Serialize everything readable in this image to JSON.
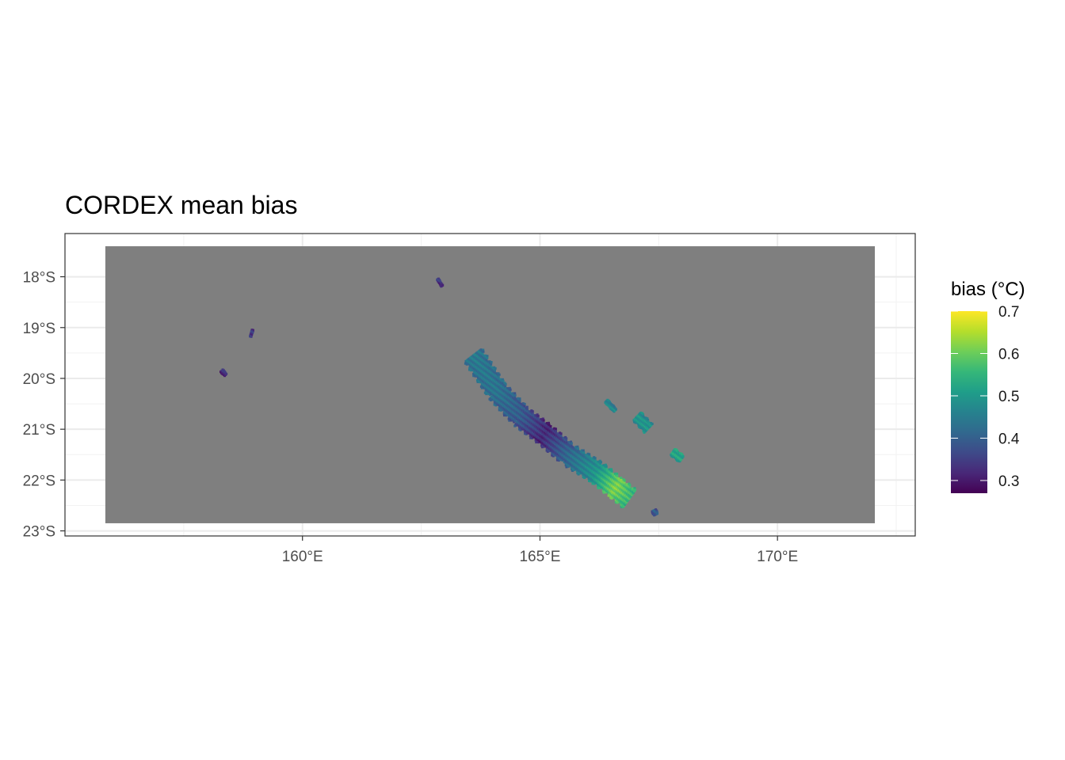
{
  "chart_data": {
    "type": "heatmap",
    "title": "CORDEX mean bias",
    "x_axis": {
      "range": [
        155.0,
        172.9
      ],
      "ticks": [
        {
          "value": 160,
          "label": "160°E"
        },
        {
          "value": 165,
          "label": "165°E"
        },
        {
          "value": 170,
          "label": "170°E"
        }
      ]
    },
    "y_axis": {
      "range": [
        -23.1,
        -17.15
      ],
      "ticks": [
        {
          "value": -18,
          "label": "18°S"
        },
        {
          "value": -19,
          "label": "19°S"
        },
        {
          "value": -20,
          "label": "20°S"
        },
        {
          "value": -21,
          "label": "21°S"
        },
        {
          "value": -22,
          "label": "22°S"
        },
        {
          "value": -23,
          "label": "23°S"
        }
      ]
    },
    "grid": true,
    "missing_value_color": "#7f7f7f",
    "data_extent": {
      "lon": [
        155.85,
        172.05
      ],
      "lat": [
        -22.85,
        -17.4
      ]
    },
    "legend": {
      "title": "bias (°C)",
      "placement": "right",
      "range": [
        0.27,
        0.7
      ],
      "breaks": [
        {
          "value": 0.3,
          "label": "0.3"
        },
        {
          "value": 0.4,
          "label": "0.4"
        },
        {
          "value": 0.5,
          "label": "0.5"
        },
        {
          "value": 0.6,
          "label": "0.6"
        },
        {
          "value": 0.7,
          "label": "0.7"
        }
      ],
      "palette": [
        "#440154",
        "#482878",
        "#3e4a89",
        "#31688e",
        "#26828e",
        "#1f9e89",
        "#35b779",
        "#6ece58",
        "#b5de2b",
        "#fde725"
      ]
    },
    "regions": [
      {
        "name": "main-island",
        "spine": [
          [
            163.6,
            -19.55
          ],
          [
            164.1,
            -20.25
          ],
          [
            164.6,
            -20.75
          ],
          [
            165.1,
            -21.1
          ],
          [
            165.6,
            -21.5
          ],
          [
            166.2,
            -21.85
          ],
          [
            166.6,
            -22.15
          ],
          [
            166.9,
            -22.38
          ]
        ],
        "halfwidth": 0.23,
        "values": [
          0.45,
          0.44,
          0.4,
          0.33,
          0.42,
          0.5,
          0.62,
          0.56
        ]
      },
      {
        "name": "ouvea",
        "spine": [
          [
            166.4,
            -20.45
          ],
          [
            166.6,
            -20.65
          ]
        ],
        "halfwidth": 0.04,
        "values": [
          0.48,
          0.48
        ]
      },
      {
        "name": "lifou",
        "spine": [
          [
            167.05,
            -20.75
          ],
          [
            167.3,
            -21.0
          ]
        ],
        "halfwidth": 0.12,
        "values": [
          0.5,
          0.5
        ]
      },
      {
        "name": "mare",
        "spine": [
          [
            167.8,
            -21.45
          ],
          [
            168.0,
            -21.6
          ]
        ],
        "halfwidth": 0.08,
        "values": [
          0.53,
          0.53
        ]
      },
      {
        "name": "isle-of-pines",
        "spine": [
          [
            167.4,
            -22.6
          ],
          [
            167.45,
            -22.7
          ]
        ],
        "halfwidth": 0.05,
        "values": [
          0.4,
          0.4
        ]
      },
      {
        "name": "belep-north",
        "spine": [
          [
            162.85,
            -18.05
          ],
          [
            162.95,
            -18.2
          ]
        ],
        "halfwidth": 0.02,
        "values": [
          0.35,
          0.35
        ]
      },
      {
        "name": "chesterfield-a",
        "spine": [
          [
            158.95,
            -19.05
          ],
          [
            158.9,
            -19.2
          ]
        ],
        "halfwidth": 0.015,
        "values": [
          0.36,
          0.36
        ]
      },
      {
        "name": "chesterfield-b",
        "spine": [
          [
            158.3,
            -19.85
          ],
          [
            158.4,
            -19.95
          ]
        ],
        "halfwidth": 0.035,
        "values": [
          0.34,
          0.34
        ]
      }
    ]
  }
}
